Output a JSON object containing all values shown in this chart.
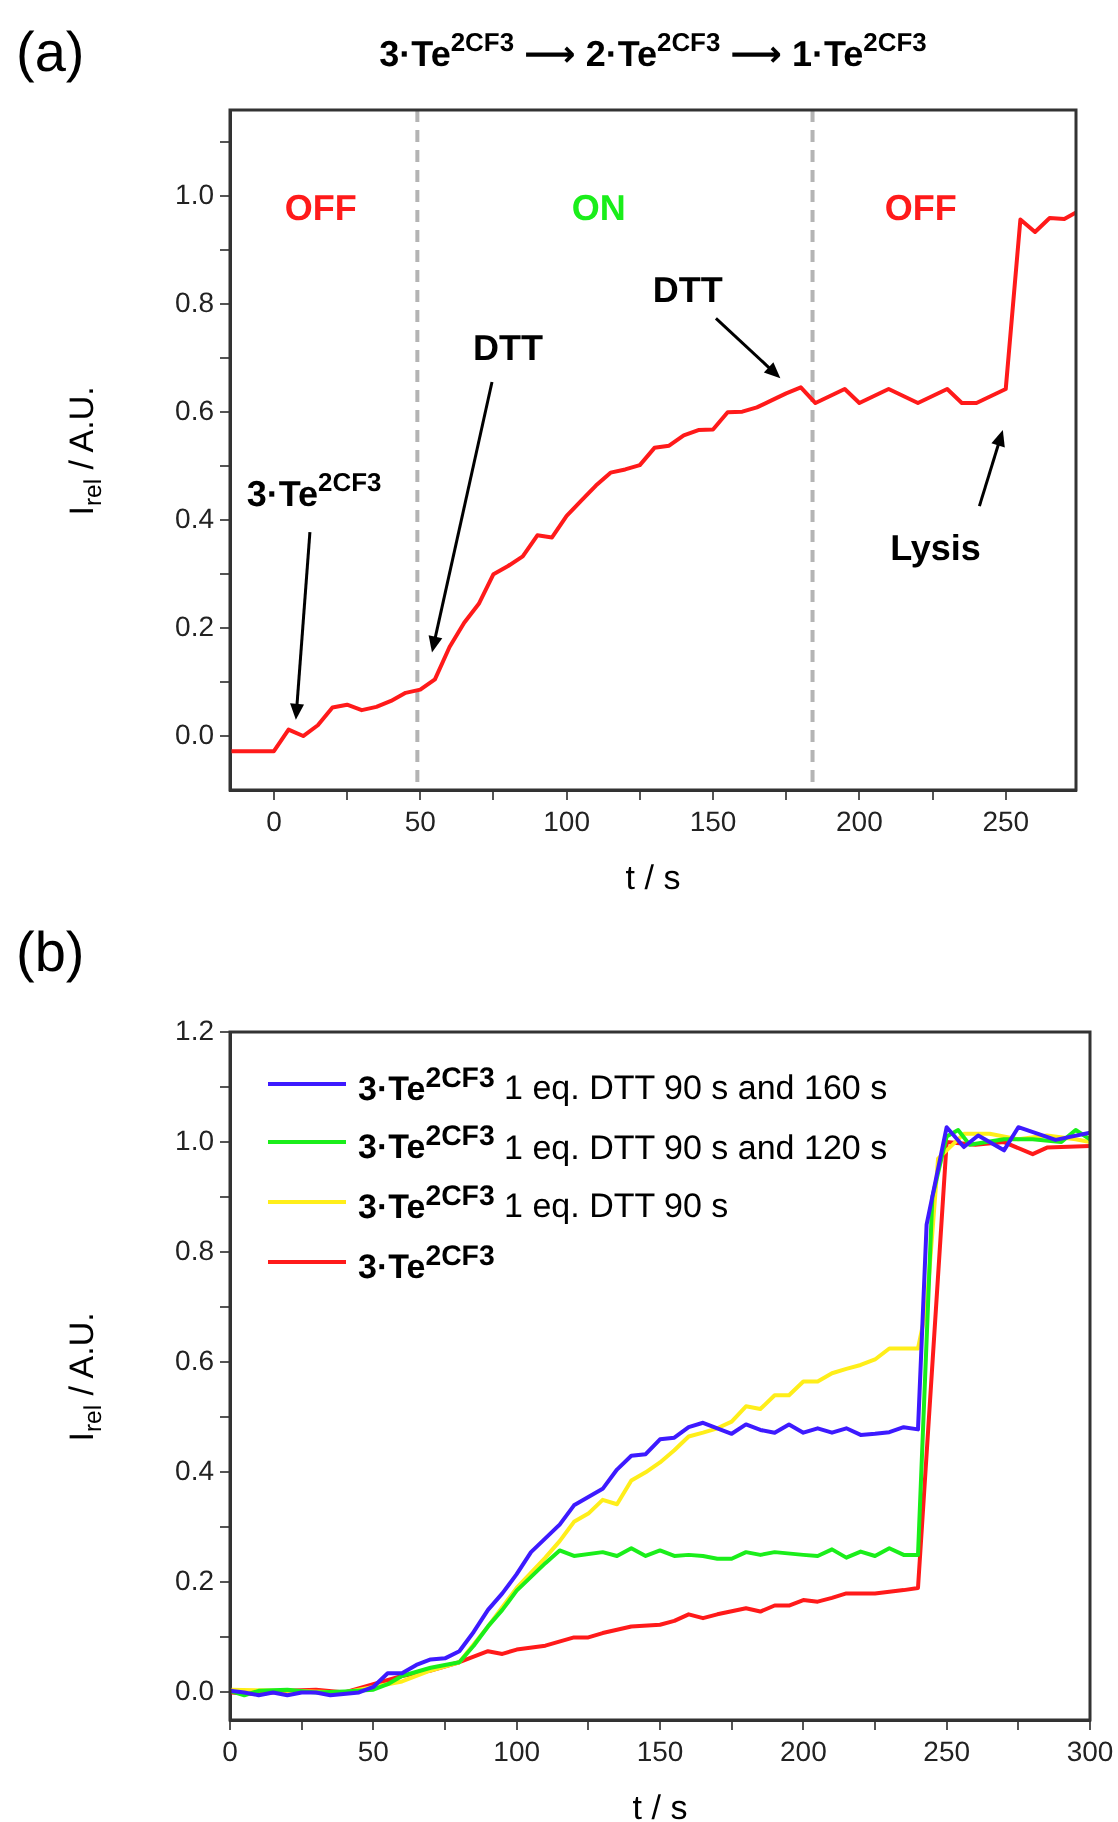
{
  "chart_data": [
    {
      "type": "line",
      "title": "3·Te$^{2CF3}$ ⟶ 2·Te$^{2CF3}$ ⟶ 1·Te$^{2CF3}$",
      "xlabel": "t / s",
      "ylabel": "I$_{rel}$ / A.U.",
      "annotations": [
        "(a)",
        "OFF",
        "ON",
        "OFF",
        "3·Te$^{2CF3}$",
        "DTT",
        "DTT",
        "Lysis"
      ],
      "x": [
        -15,
        0,
        5,
        10,
        15,
        20,
        25,
        30,
        35,
        40,
        45,
        50,
        55,
        60,
        65,
        70,
        75,
        80,
        85,
        90,
        95,
        100,
        105,
        110,
        115,
        120,
        125,
        130,
        135,
        140,
        145,
        150,
        155,
        160,
        165,
        170,
        175,
        180,
        185,
        190,
        195,
        200,
        210,
        220,
        230,
        235,
        240,
        250,
        255,
        260,
        265,
        270,
        274
      ],
      "series": [
        {
          "color": "#ff1a1a",
          "values": [
            -0.028,
            -0.028,
            0.012,
            0,
            0.02,
            0.053,
            0.058,
            0.048,
            0.054,
            0.065,
            0.08,
            0.086,
            0.105,
            0.165,
            0.21,
            0.245,
            0.3,
            0.315,
            0.333,
            0.372,
            0.368,
            0.408,
            0.436,
            0.464,
            0.488,
            0.494,
            0.502,
            0.534,
            0.538,
            0.557,
            0.567,
            0.568,
            0.6,
            0.601,
            0.609,
            0.622,
            0.635,
            0.646,
            0.617,
            0.63,
            0.643,
            0.617,
            0.643,
            0.617,
            0.643,
            0.617,
            0.617,
            0.643,
            0.957,
            0.934,
            0.96,
            0.958,
            0.97
          ]
        }
      ],
      "xlim": [
        -15,
        274
      ],
      "ylim": [
        -0.1,
        1.16
      ],
      "xticks": [
        0,
        50,
        100,
        150,
        200,
        250,
        {
          "value": 25,
          "label": null
        },
        {
          "value": 75,
          "label": null
        },
        {
          "value": 125,
          "label": null
        },
        {
          "value": 175,
          "label": null
        },
        {
          "value": 225,
          "label": null
        }
      ],
      "yticks": [
        {
          "value": 0,
          "label": "0.0"
        },
        {
          "value": 0.2,
          "label": "0.2"
        },
        {
          "value": 0.4,
          "label": "0.4"
        },
        {
          "value": 0.6,
          "label": "0.6"
        },
        {
          "value": 0.8,
          "label": "0.8"
        },
        {
          "value": 1,
          "label": "1.0"
        },
        {
          "value": 0.1,
          "label": null
        },
        {
          "value": 0.3,
          "label": null
        },
        {
          "value": 0.5,
          "label": null
        },
        {
          "value": 0.7,
          "label": null
        },
        {
          "value": 0.9,
          "label": null
        },
        {
          "value": 1.1,
          "label": null
        }
      ],
      "ref_lines": [
        {
          "axis": "x",
          "value": 49,
          "color": "#b4b4b4",
          "line_style": "dashed"
        },
        {
          "axis": "x",
          "value": 184,
          "color": "#b4b4b4",
          "line_style": "dashed"
        }
      ]
    },
    {
      "type": "line",
      "xlabel": "t / s",
      "ylabel": "I$_{rel}$ / A.U.",
      "annotations": [
        "(b)"
      ],
      "legend": "top left",
      "series": [
        {
          "name": "3·Te$^{2CF3}$ 1 eq. DTT 90 s and 160 s",
          "color": "#3d1aff",
          "x": [
            0,
            5,
            10,
            15,
            20,
            25,
            30,
            35,
            45,
            50,
            55,
            60,
            65,
            70,
            75,
            80,
            85,
            90,
            95,
            100,
            105,
            110,
            115,
            120,
            125,
            130,
            135,
            140,
            145,
            150,
            155,
            160,
            165,
            170,
            175,
            180,
            185,
            190,
            195,
            200,
            205,
            210,
            215,
            220,
            225,
            230,
            235,
            240,
            243,
            250,
            256,
            261,
            270,
            275,
            288,
            300
          ],
          "values": [
            0.003,
            0,
            -0.005,
            0,
            -0.005,
            0,
            0,
            -0.005,
            0,
            0.01,
            0.035,
            0.035,
            0.05,
            0.06,
            0.062,
            0.075,
            0.11,
            0.15,
            0.18,
            0.215,
            0.255,
            0.28,
            0.305,
            0.34,
            0.355,
            0.37,
            0.405,
            0.43,
            0.433,
            0.46,
            0.463,
            0.482,
            0.49,
            0.48,
            0.47,
            0.487,
            0.477,
            0.472,
            0.487,
            0.472,
            0.48,
            0.472,
            0.48,
            0.468,
            0.47,
            0.473,
            0.482,
            0.478,
            0.85,
            1.027,
            0.991,
            1.012,
            0.985,
            1.027,
            1.004,
            1.017
          ]
        },
        {
          "name": "3·Te$^{2CF3}$ 1 eq. DTT 90 s and 120 s",
          "color": "#1aee1a",
          "x": [
            0,
            5,
            10,
            20,
            30,
            40,
            50,
            55,
            60,
            70,
            80,
            85,
            90,
            95,
            100,
            105,
            110,
            115,
            120,
            130,
            135,
            140,
            145,
            150,
            155,
            160,
            165,
            170,
            175,
            180,
            185,
            190,
            200,
            205,
            210,
            215,
            220,
            225,
            230,
            235,
            240,
            245,
            250,
            254,
            258,
            270,
            280,
            290,
            295,
            300
          ],
          "values": [
            0.003,
            -0.005,
            0.003,
            0.005,
            0,
            0.002,
            0.005,
            0.015,
            0.03,
            0.045,
            0.055,
            0.085,
            0.12,
            0.15,
            0.185,
            0.21,
            0.235,
            0.258,
            0.248,
            0.255,
            0.248,
            0.262,
            0.248,
            0.258,
            0.248,
            0.25,
            0.248,
            0.243,
            0.243,
            0.255,
            0.25,
            0.255,
            0.25,
            0.248,
            0.26,
            0.245,
            0.256,
            0.248,
            0.262,
            0.25,
            0.25,
            0.9,
            1.01,
            1.022,
            0.995,
            1.005,
            1.005,
            1,
            1.022,
            1.005
          ]
        },
        {
          "name": "3·Te$^{2CF3}$ 1 eq. DTT 90 s",
          "color": "#ffee1a",
          "x": [
            0,
            20,
            40,
            50,
            60,
            70,
            80,
            90,
            100,
            110,
            115,
            120,
            125,
            130,
            135,
            140,
            145,
            150,
            155,
            160,
            165,
            170,
            175,
            180,
            185,
            190,
            195,
            200,
            205,
            210,
            215,
            220,
            225,
            230,
            240,
            243,
            247,
            252,
            256,
            265,
            275,
            285,
            295,
            300
          ],
          "values": [
            0.005,
            0.003,
            0,
            0.01,
            0.02,
            0.04,
            0.055,
            0.12,
            0.19,
            0.245,
            0.275,
            0.31,
            0.325,
            0.35,
            0.342,
            0.385,
            0.4,
            0.418,
            0.44,
            0.465,
            0.472,
            0.48,
            0.492,
            0.52,
            0.515,
            0.54,
            0.54,
            0.565,
            0.565,
            0.58,
            0.588,
            0.595,
            0.605,
            0.625,
            0.625,
            0.7,
            0.97,
            0.995,
            1.015,
            1.015,
            1.005,
            1.012,
            1.005,
            1
          ]
        },
        {
          "name": "3·Te$^{2CF3}$",
          "color": "#ff1a1a",
          "x": [
            0,
            10,
            20,
            30,
            40,
            50,
            60,
            70,
            80,
            90,
            95,
            100,
            110,
            120,
            125,
            130,
            140,
            150,
            155,
            160,
            165,
            170,
            180,
            185,
            190,
            195,
            200,
            205,
            210,
            215,
            225,
            235,
            240,
            250,
            260,
            270,
            280,
            285,
            300
          ],
          "values": [
            0,
            -0.003,
            0.003,
            0.005,
            0,
            0.015,
            0.03,
            0.04,
            0.055,
            0.075,
            0.07,
            0.078,
            0.085,
            0.1,
            0.1,
            0.108,
            0.12,
            0.123,
            0.13,
            0.142,
            0.135,
            0.142,
            0.153,
            0.147,
            0.158,
            0.158,
            0.168,
            0.165,
            0.172,
            0.18,
            0.18,
            0.186,
            0.19,
            1,
            0.995,
            1,
            0.978,
            0.99,
            0.993
          ]
        }
      ],
      "xlim": [
        0,
        300
      ],
      "ylim": [
        -0.05,
        1.2
      ],
      "xticks": [
        0,
        50,
        100,
        150,
        200,
        250,
        300,
        {
          "value": 25,
          "label": null
        },
        {
          "value": 75,
          "label": null
        },
        {
          "value": 125,
          "label": null
        },
        {
          "value": 175,
          "label": null
        },
        {
          "value": 225,
          "label": null
        },
        {
          "value": 275,
          "label": null
        }
      ],
      "yticks": [
        {
          "value": 0,
          "label": "0.0"
        },
        {
          "value": 0.2,
          "label": "0.2"
        },
        {
          "value": 0.4,
          "label": "0.4"
        },
        {
          "value": 0.6,
          "label": "0.6"
        },
        {
          "value": 0.8,
          "label": "0.8"
        },
        {
          "value": 1,
          "label": "1.0"
        },
        {
          "value": 1.2,
          "label": "1.2"
        },
        {
          "value": 0.1,
          "label": null
        },
        {
          "value": 0.3,
          "label": null
        },
        {
          "value": 0.5,
          "label": null
        },
        {
          "value": 0.7,
          "label": null
        },
        {
          "value": 0.9,
          "label": null
        },
        {
          "value": 1.1,
          "label": null
        }
      ]
    }
  ]
}
